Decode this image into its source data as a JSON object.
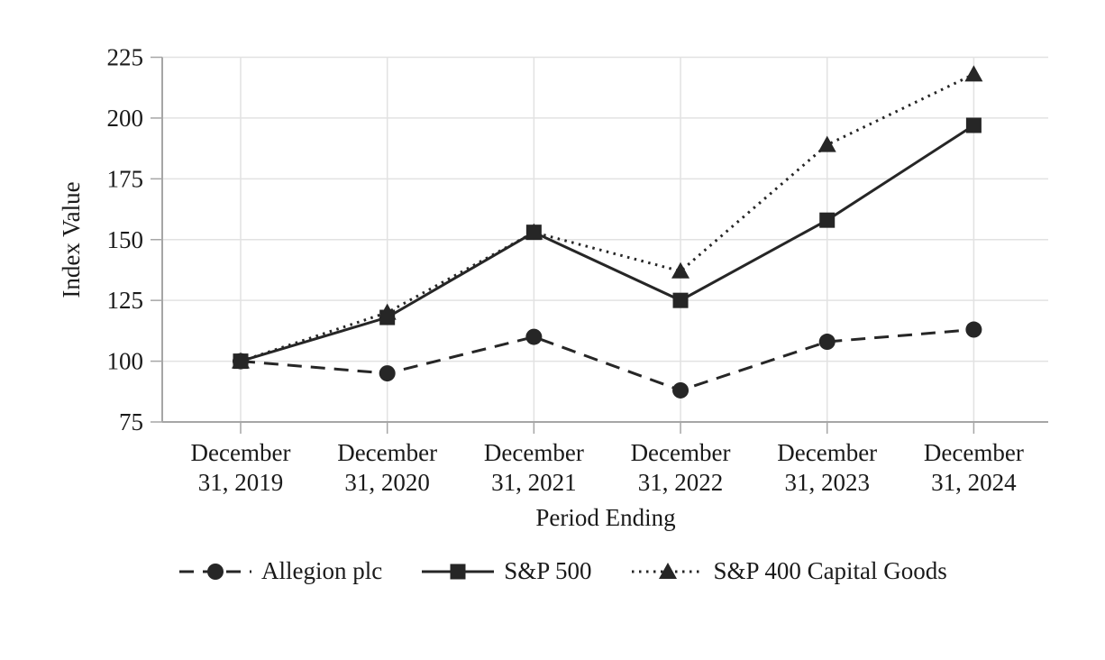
{
  "chart_data": {
    "type": "line",
    "title": "",
    "xlabel": "Period Ending",
    "ylabel": "Index Value",
    "categories": [
      [
        "December",
        "31, 2019"
      ],
      [
        "December",
        "31, 2020"
      ],
      [
        "December",
        "31, 2021"
      ],
      [
        "December",
        "31, 2022"
      ],
      [
        "December",
        "31, 2023"
      ],
      [
        "December",
        "31, 2024"
      ]
    ],
    "series": [
      {
        "name": "Allegion plc",
        "values": [
          100,
          95,
          110,
          88,
          108,
          113
        ],
        "line_style": "dashed",
        "marker": "circle"
      },
      {
        "name": "S&P 500",
        "values": [
          100,
          118,
          153,
          125,
          158,
          197
        ],
        "line_style": "solid",
        "marker": "square"
      },
      {
        "name": "S&P 400 Capital Goods",
        "values": [
          100,
          120,
          153,
          137,
          189,
          218
        ],
        "line_style": "dotted",
        "marker": "triangle"
      }
    ],
    "ylim": [
      75,
      225
    ],
    "yticks": [
      75,
      100,
      125,
      150,
      175,
      200,
      225
    ],
    "grid": true,
    "legend_position": "bottom",
    "colors": {
      "series": "#262626",
      "text": "#1a1a1a",
      "grid": "#e2e2e2",
      "axis": "#a6a6a6"
    }
  }
}
